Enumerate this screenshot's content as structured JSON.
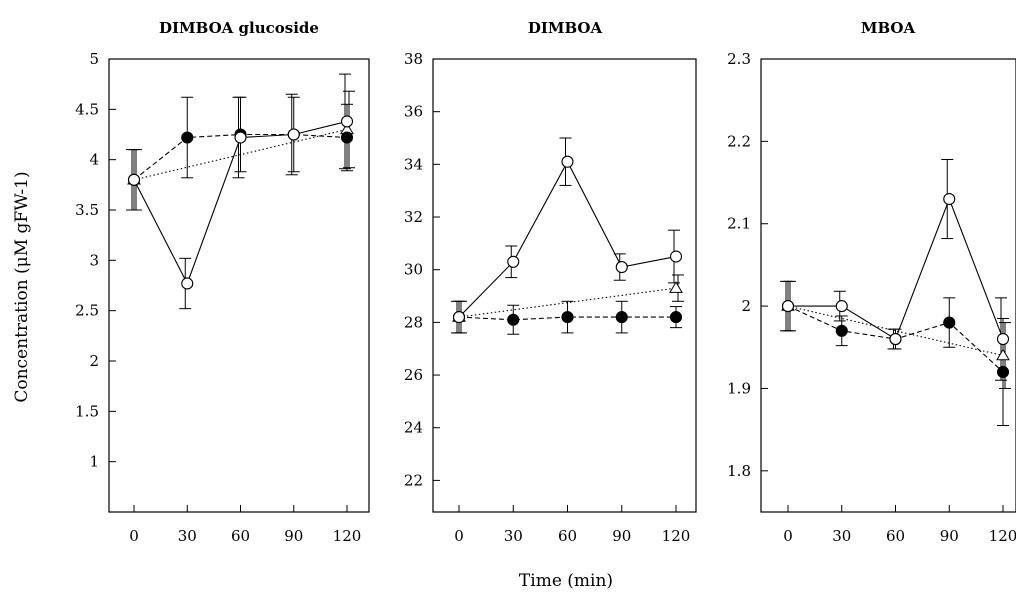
{
  "ylabel": "Concentration (μM gFW-1)",
  "xlabel": "Time (min)",
  "chart_data": [
    {
      "type": "line",
      "title": "DIMBOA glucoside",
      "x": [
        0,
        30,
        60,
        90,
        120
      ],
      "xticks": [
        "0",
        "30",
        "60",
        "90",
        "120"
      ],
      "ylim": [
        0.5,
        5
      ],
      "yticks": [
        "1",
        "1.5",
        "2",
        "2.5",
        "3",
        "3.5",
        "4",
        "4.5",
        "5"
      ],
      "series": [
        {
          "marker": "open-circle",
          "line": "solid",
          "values": [
            3.8,
            2.77,
            4.22,
            4.25,
            4.38
          ],
          "errors": [
            0.3,
            0.25,
            0.4,
            0.4,
            0.47
          ]
        },
        {
          "marker": "filled-circle",
          "line": "dashed",
          "values": [
            3.8,
            4.22,
            4.25,
            4.25,
            4.22
          ],
          "errors": [
            0.3,
            0.4,
            0.37,
            0.37,
            0.33
          ]
        },
        {
          "marker": "open-triangle",
          "line": "dotted",
          "values": [
            3.8,
            null,
            null,
            null,
            4.3
          ],
          "errors": [
            0.3,
            null,
            null,
            null,
            0.38
          ]
        }
      ]
    },
    {
      "type": "line",
      "title": "DIMBOA",
      "x": [
        0,
        30,
        60,
        90,
        120
      ],
      "xticks": [
        "0",
        "30",
        "60",
        "90",
        "120"
      ],
      "ylim": [
        20.8,
        38
      ],
      "yticks": [
        "22",
        "24",
        "26",
        "28",
        "30",
        "32",
        "34",
        "36",
        "38"
      ],
      "series": [
        {
          "marker": "open-circle",
          "line": "solid",
          "values": [
            28.2,
            30.3,
            34.1,
            30.1,
            30.5
          ],
          "errors": [
            0.6,
            0.6,
            0.9,
            0.5,
            1.0
          ]
        },
        {
          "marker": "filled-circle",
          "line": "dashed",
          "values": [
            28.2,
            28.1,
            28.2,
            28.2,
            28.2
          ],
          "errors": [
            0.6,
            0.55,
            0.6,
            0.6,
            0.4
          ]
        },
        {
          "marker": "open-triangle",
          "line": "dotted",
          "values": [
            28.2,
            null,
            null,
            null,
            29.3
          ],
          "errors": [
            0.6,
            null,
            null,
            null,
            0.5
          ]
        }
      ]
    },
    {
      "type": "line",
      "title": "MBOA",
      "x": [
        0,
        30,
        60,
        90,
        120
      ],
      "xticks": [
        "0",
        "30",
        "60",
        "90",
        "120"
      ],
      "ylim": [
        1.75,
        2.3
      ],
      "yticks": [
        "1.8",
        "1.9",
        "2",
        "2.1",
        "2.2",
        "2.3"
      ],
      "series": [
        {
          "marker": "open-circle",
          "line": "solid",
          "values": [
            2.0,
            2.0,
            1.96,
            2.13,
            1.96
          ],
          "errors": [
            0.03,
            0.018,
            0.012,
            0.048,
            0.05
          ]
        },
        {
          "marker": "filled-circle",
          "line": "dashed",
          "values": [
            2.0,
            1.97,
            1.96,
            1.98,
            1.92
          ],
          "errors": [
            0.03,
            0.018,
            0.012,
            0.03,
            0.065
          ]
        },
        {
          "marker": "open-triangle",
          "line": "dotted",
          "values": [
            2.0,
            null,
            null,
            null,
            1.94
          ],
          "errors": [
            0.03,
            null,
            null,
            null,
            0.04
          ]
        }
      ]
    }
  ]
}
